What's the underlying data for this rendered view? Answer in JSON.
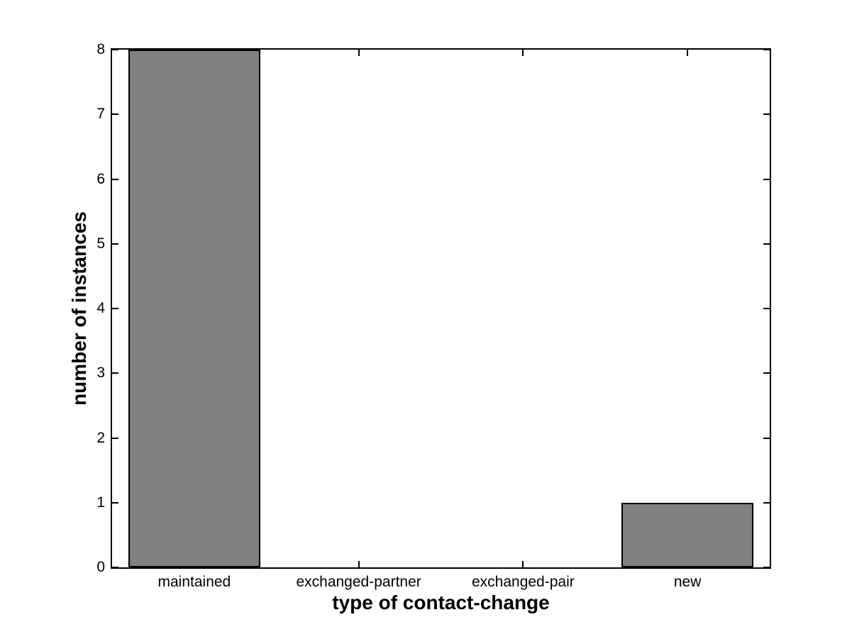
{
  "chart_data": {
    "type": "bar",
    "title": "",
    "categories": [
      "maintained",
      "exchanged-partner",
      "exchanged-pair",
      "new"
    ],
    "values": [
      8,
      0,
      0,
      1
    ],
    "xlabel": "type of contact-change",
    "ylabel": "number of instances",
    "ylim": [
      0,
      8
    ],
    "yticks": [
      0,
      1,
      2,
      3,
      4,
      5,
      6,
      7,
      8
    ],
    "x_range": [
      0.5,
      4.5
    ],
    "bar_width_fraction": 0.8,
    "grid": false,
    "legend": "none",
    "colors": {
      "bar_fill": "#808080",
      "bar_edge": "#000000",
      "axis": "#000000",
      "background": "#ffffff",
      "text": "#000000"
    }
  }
}
